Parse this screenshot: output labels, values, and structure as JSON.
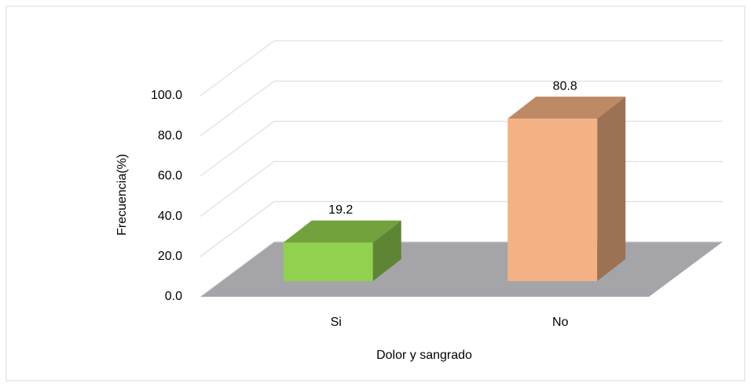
{
  "chart_data": {
    "type": "bar3d",
    "x_label": "Dolor y sangrado",
    "y_label": "Frecuencia(%)",
    "categories": [
      "Si",
      "No"
    ],
    "values": [
      19.2,
      80.8
    ],
    "colors": [
      "#92d050",
      "#f4b183"
    ],
    "ylim": [
      0,
      100
    ],
    "yticks": [
      {
        "value": 0,
        "label": "0.0"
      },
      {
        "value": 20,
        "label": "20.0"
      },
      {
        "value": 40,
        "label": "40.0"
      },
      {
        "value": 60,
        "label": "60.0"
      },
      {
        "value": 80,
        "label": "80.0"
      },
      {
        "value": 100,
        "label": "100.0"
      }
    ],
    "grid": true
  }
}
